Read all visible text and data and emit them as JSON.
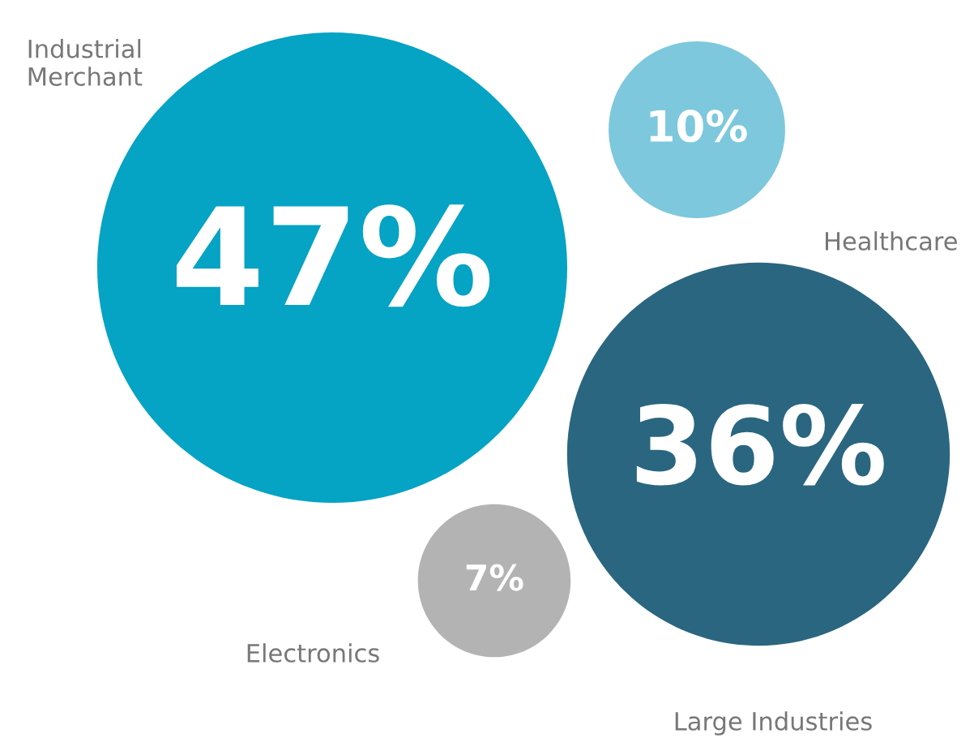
{
  "chart_data": {
    "type": "other",
    "categories": [
      "Industrial\nMerchant",
      "Healthcare",
      "Large Industries",
      "Electronics"
    ],
    "values": [
      47,
      10,
      36,
      7
    ],
    "colors": [
      "#05a3c4",
      "#7dc8dc",
      "#2a6680",
      "#b3b3b3"
    ],
    "value_labels": [
      "47%",
      "10%",
      "36%",
      "7%"
    ]
  }
}
